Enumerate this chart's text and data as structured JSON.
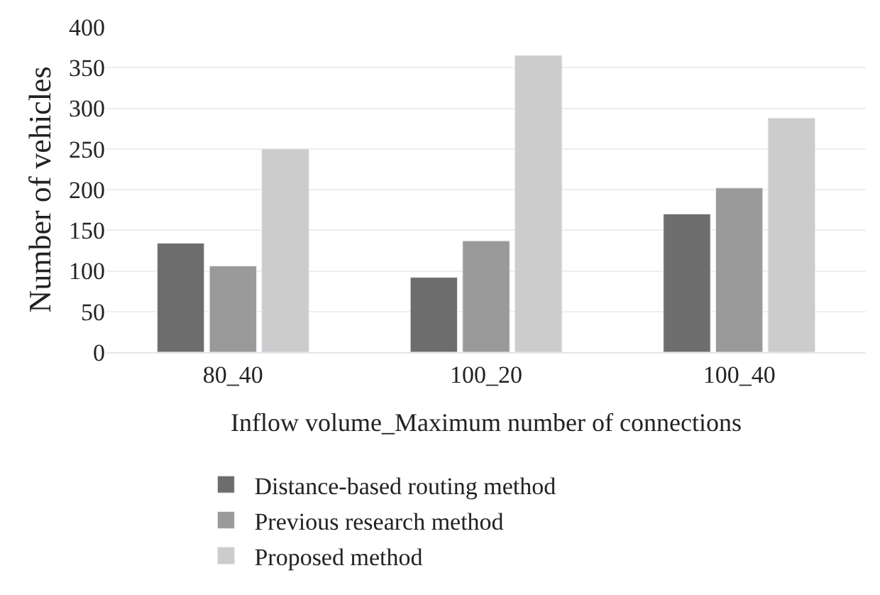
{
  "chart_data": {
    "type": "bar",
    "xlabel": "Inflow volume_Maximum number of connections",
    "ylabel": "Number of vehicles",
    "categories": [
      "80_40",
      "100_20",
      "100_40"
    ],
    "series": [
      {
        "name": "Distance-based routing method",
        "color": "#6d6d6d",
        "values": [
          134,
          92,
          170
        ]
      },
      {
        "name": "Previous research method",
        "color": "#9a9a9a",
        "values": [
          106,
          137,
          202
        ]
      },
      {
        "name": "Proposed method",
        "color": "#cbcccb",
        "values": [
          250,
          365,
          288
        ]
      }
    ],
    "ylim": [
      0,
      400
    ],
    "yticks": [
      0,
      50,
      100,
      150,
      200,
      250,
      300,
      350,
      400
    ],
    "grid": "y",
    "legend": "bottom"
  }
}
